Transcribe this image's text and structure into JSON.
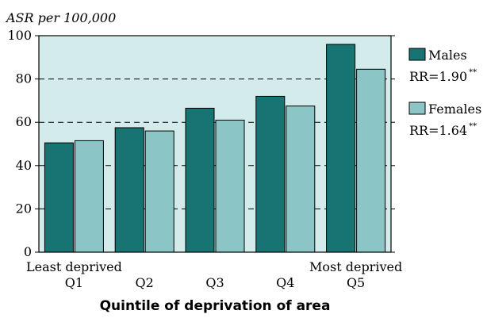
{
  "chart_data": {
    "type": "bar",
    "ylabel": "ASR per 100,000",
    "xlabel": "Quintile of deprivation of area",
    "categories": [
      "Q1",
      "Q2",
      "Q3",
      "Q4",
      "Q5"
    ],
    "x_annotations": {
      "first": "Least deprived",
      "last": "Most deprived"
    },
    "ylim": [
      0,
      100
    ],
    "yticks": [
      0,
      20,
      40,
      60,
      80,
      100
    ],
    "grid": "dashed horizontal",
    "legend_position": "right",
    "series": [
      {
        "name": "Males",
        "values": [
          50.5,
          57.5,
          66.5,
          72,
          96
        ],
        "color": "#177472",
        "rr": "RR=1.90",
        "rr_mark": "**"
      },
      {
        "name": "Females",
        "values": [
          51.5,
          56,
          61,
          67.5,
          84.5
        ],
        "color": "#8cc5c5",
        "rr": "RR=1.64",
        "rr_mark": "**"
      }
    ],
    "plot_background": "#d3ebeb"
  }
}
